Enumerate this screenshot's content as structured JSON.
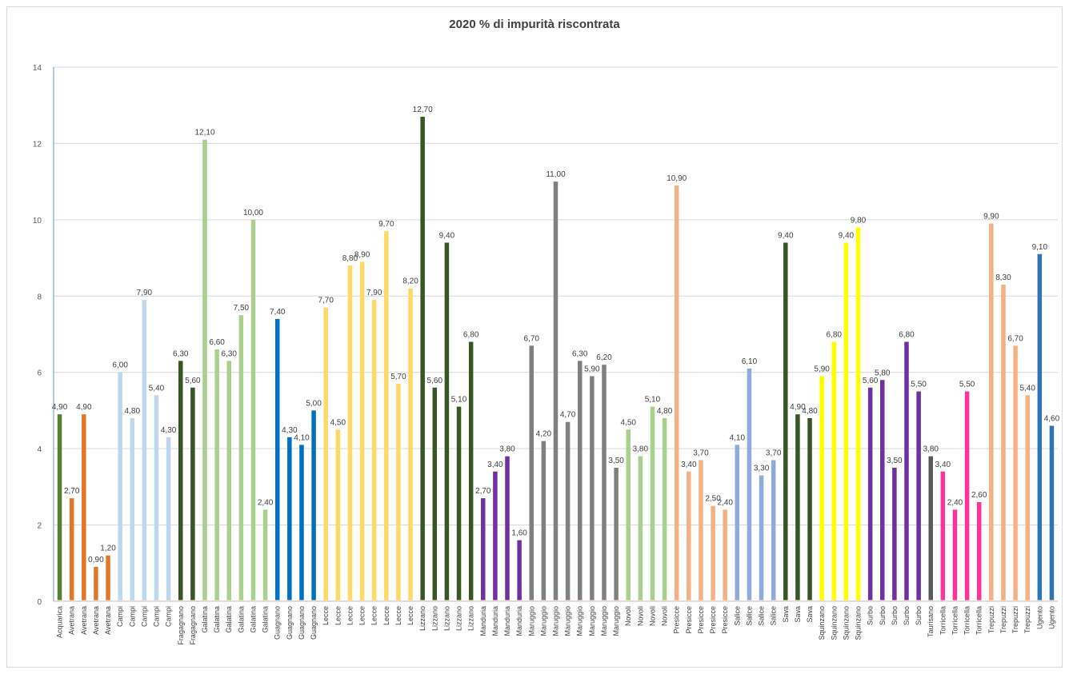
{
  "chart_data": {
    "type": "bar",
    "title": "2020 % di impurità riscontrata",
    "xlabel": "",
    "ylabel": "",
    "ylim": [
      0,
      14
    ],
    "yticks": [
      0,
      2,
      4,
      6,
      8,
      10,
      12,
      14
    ],
    "grid": true,
    "legend": "none",
    "categories": [
      "Acquarica",
      "Avetrana",
      "Avetrana",
      "Avetrana",
      "Avetrana",
      "Campi",
      "Campi",
      "Campi",
      "Campi",
      "Campi",
      "Fragagnano",
      "Fragagnano",
      "Galatina",
      "Galatina",
      "Galatina",
      "Galatina",
      "Galatina",
      "Galatina",
      "Guagnano",
      "Guagnano",
      "Guagnano",
      "Guagnano",
      "Lecce",
      "Lecce",
      "Lecce",
      "Lecce",
      "Lecce",
      "Lecce",
      "Lecce",
      "Lecce",
      "Lizzano",
      "Lizzano",
      "Lizzano",
      "Lizzano",
      "Lizzano",
      "Manduria",
      "Manduria",
      "Manduria",
      "Manduria",
      "Maruggio",
      "Maruggio",
      "Maruggio",
      "Maruggio",
      "Maruggio",
      "Maruggio",
      "Maruggio",
      "Maruggio",
      "Novoli",
      "Novoli",
      "Novoli",
      "Novoli",
      "Presicce",
      "Presicce",
      "Presicce",
      "Presicce",
      "Presicce",
      "Salice",
      "Salice",
      "Salice",
      "Salice",
      "Sava",
      "Sava",
      "Sava",
      "Squinzano",
      "Squinzano",
      "Squinzano",
      "Squinzano",
      "Surbo",
      "Surbo",
      "Surbo",
      "Surbo",
      "Surbo",
      "Taurisano",
      "Torricella",
      "Torricella",
      "Torricella",
      "Torricella",
      "Trepuzzi",
      "Trepuzzi",
      "Trepuzzi",
      "Trepuzzi",
      "Ugento",
      "Ugento"
    ],
    "values": [
      4.9,
      2.7,
      4.9,
      0.9,
      1.2,
      6.0,
      4.8,
      7.9,
      5.4,
      4.3,
      6.3,
      5.6,
      12.1,
      6.6,
      6.3,
      7.5,
      10.0,
      2.4,
      7.4,
      4.3,
      4.1,
      5.0,
      7.7,
      4.5,
      8.8,
      8.9,
      7.9,
      9.7,
      5.7,
      8.2,
      12.7,
      5.6,
      9.4,
      5.1,
      6.8,
      2.7,
      3.4,
      3.8,
      1.6,
      6.7,
      4.2,
      11.0,
      4.7,
      6.3,
      5.9,
      6.2,
      3.5,
      4.5,
      3.8,
      5.1,
      4.8,
      10.9,
      3.4,
      3.7,
      2.5,
      2.4,
      4.1,
      6.1,
      3.3,
      3.7,
      9.4,
      4.9,
      4.8,
      5.9,
      6.8,
      9.4,
      9.8,
      5.6,
      5.8,
      3.5,
      6.8,
      5.5,
      3.8,
      3.4,
      2.4,
      5.5,
      2.6,
      9.9,
      8.3,
      6.7,
      5.4,
      9.1,
      4.6
    ],
    "data_labels": [
      "4,90",
      "2,70",
      "4,90",
      "0,90",
      "1,20",
      "6,00",
      "4,80",
      "7,90",
      "5,40",
      "4,30",
      "6,30",
      "5,60",
      "12,10",
      "6,60",
      "6,30",
      "7,50",
      "10,00",
      "2,40",
      "7,40",
      "4,30",
      "4,10",
      "5,00",
      "7,70",
      "4,50",
      "8,80",
      "8,90",
      "7,90",
      "9,70",
      "5,70",
      "8,20",
      "12,70",
      "5,60",
      "9,40",
      "5,10",
      "6,80",
      "2,70",
      "3,40",
      "3,80",
      "1,60",
      "6,70",
      "4,20",
      "11,00",
      "4,70",
      "6,30",
      "5,90",
      "6,20",
      "3,50",
      "4,50",
      "3,80",
      "5,10",
      "4,80",
      "10,90",
      "3,40",
      "3,70",
      "2,50",
      "2,40",
      "4,10",
      "6,10",
      "3,30",
      "3,70",
      "9,40",
      "4,90",
      "4,80",
      "5,90",
      "6,80",
      "9,40",
      "9,80",
      "5,60",
      "5,80",
      "3,50",
      "6,80",
      "5,50",
      "3,80",
      "3,40",
      "2,40",
      "5,50",
      "2,60",
      "9,90",
      "8,30",
      "6,70",
      "5,40",
      "9,10",
      "4,60"
    ],
    "colors": {
      "Acquarica": "#548235",
      "Avetrana": "#e2772a",
      "Campi": "#bdd7ee",
      "Fragagnano": "#375623",
      "Galatina": "#a9d18e",
      "Guagnano": "#0070c0",
      "Lecce": "#ffd966",
      "Lizzano": "#375623",
      "Manduria": "#7030a0",
      "Maruggio": "#7f7f7f",
      "Novoli": "#a9d18e",
      "Presicce": "#f4b183",
      "Salice": "#8faadc",
      "Sava": "#375623",
      "Squinzano": "#ffff00",
      "Surbo": "#7030a0",
      "Taurisano": "#595959",
      "Torricella": "#ff3399",
      "Trepuzzi": "#f4b183",
      "Ugento": "#2e75b6"
    },
    "axis_color": "#5b9bd5",
    "grid_color": "#d9d9d9"
  }
}
